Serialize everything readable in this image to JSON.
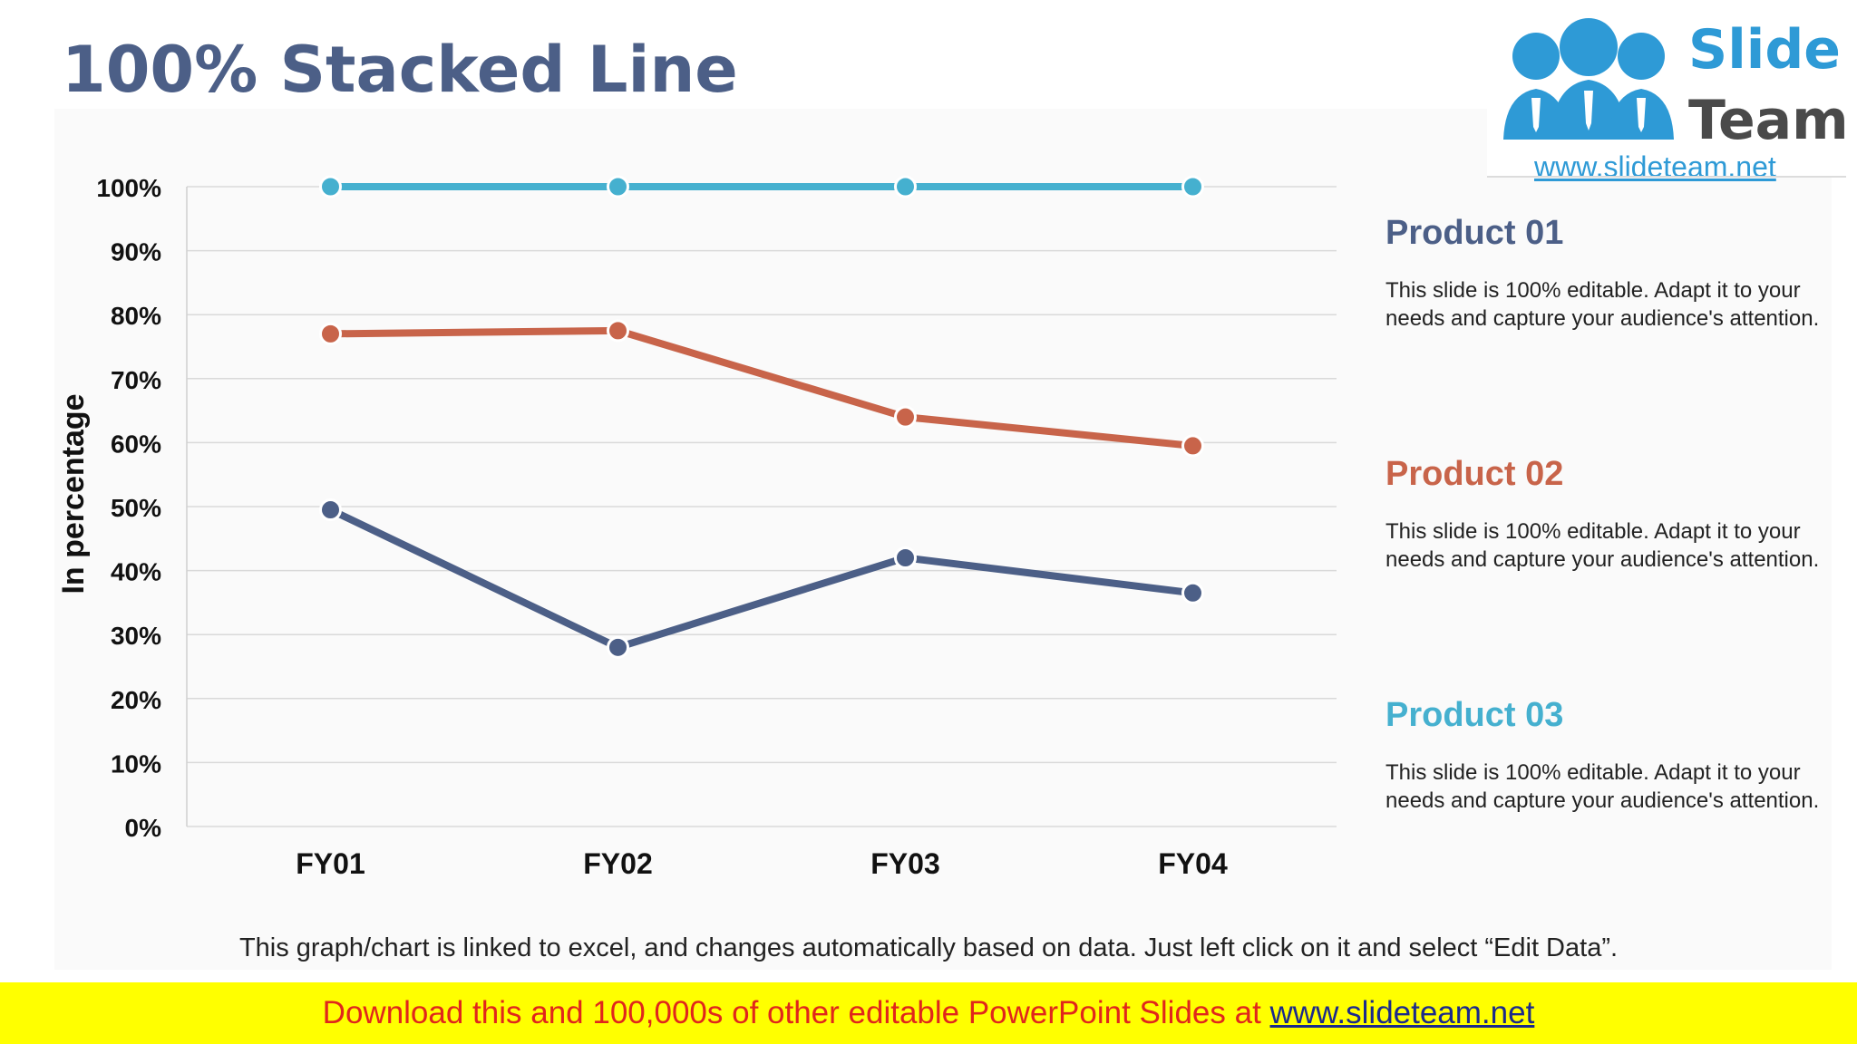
{
  "title": "100% Stacked Line",
  "logo": {
    "brand_top": "Slide",
    "brand_bottom": "Team",
    "url": "www.slideteam.net"
  },
  "colors": {
    "title": "#4c5f87",
    "product_01": "#4c5f87",
    "product_02": "#c8644a",
    "product_03": "#45b0cf",
    "banner_bg": "#ffff00",
    "banner_text": "#e0261c",
    "banner_link": "#1b2a8c"
  },
  "chart_data": {
    "type": "line",
    "title": "",
    "xlabel": "",
    "ylabel": "In percentage",
    "categories": [
      "FY01",
      "FY02",
      "FY03",
      "FY04"
    ],
    "ylim": [
      0,
      100
    ],
    "yticks": [
      0,
      10,
      20,
      30,
      40,
      50,
      60,
      70,
      80,
      90,
      100
    ],
    "ytick_labels": [
      "0%",
      "10%",
      "20%",
      "30%",
      "40%",
      "50%",
      "60%",
      "70%",
      "80%",
      "90%",
      "100%"
    ],
    "grid": true,
    "series": [
      {
        "name": "Product 01",
        "color": "#4c5f87",
        "values": [
          49.5,
          28,
          42,
          36.5
        ]
      },
      {
        "name": "Product 02",
        "color": "#c8644a",
        "values": [
          77,
          77.5,
          64,
          59.5
        ]
      },
      {
        "name": "Product 03",
        "color": "#45b0cf",
        "values": [
          100,
          100,
          100,
          100
        ]
      }
    ]
  },
  "products": [
    {
      "name": "Product 01",
      "description": "This slide is 100% editable. Adapt it to your needs and capture your audience's attention."
    },
    {
      "name": "Product 02",
      "description": "This slide is 100% editable. Adapt it to your needs and capture your audience's attention."
    },
    {
      "name": "Product 03",
      "description": "This slide is 100% editable. Adapt it to your needs and capture your audience's attention."
    }
  ],
  "footnote": "This graph/chart is linked to excel, and changes automatically based on data. Just left click on it and select “Edit Data”.",
  "banner": {
    "text": "Download this and 100,000s of other editable PowerPoint Slides at ",
    "link": "www.slideteam.net"
  }
}
